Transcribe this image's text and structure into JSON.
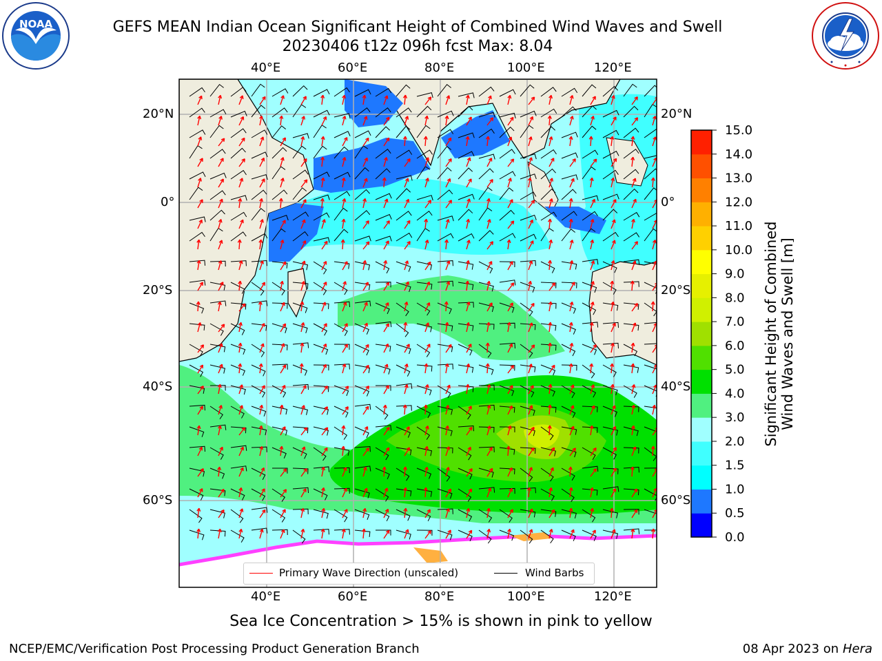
{
  "title": {
    "line1": "GEFS MEAN Indian Ocean Significant Height of Combined Wind Waves and Swell",
    "line2": "20230406 t12z 096h fcst   Max: 8.04"
  },
  "logos": {
    "left": {
      "name": "noaa-logo",
      "text": "NOAA",
      "ring_text": "NATIONAL OCEANIC AND ATMOSPHERIC ADMINISTRATION · U.S. DEPARTMENT OF COMMERCE"
    },
    "right": {
      "name": "nws-logo",
      "ring_text": "NATIONAL WEATHER SERVICE"
    }
  },
  "map": {
    "lon_labels": [
      "40°E",
      "60°E",
      "80°E",
      "100°E",
      "120°E"
    ],
    "lat_labels": [
      "20°N",
      "0°",
      "20°S",
      "40°S",
      "60°S"
    ],
    "land_color": "#efedde",
    "grid_color": "#b0b0b0"
  },
  "legend": {
    "wave_label": "Primary Wave Direction (unscaled)",
    "wave_color": "#ff0000",
    "barb_label": "Wind Barbs",
    "barb_color": "#000000"
  },
  "colorbar": {
    "title_line1": "Significant Height of Combined",
    "title_line2": "Wind Waves and Swell [m]",
    "ticks": [
      "0.0",
      "0.5",
      "1.0",
      "1.5",
      "2.0",
      "3.0",
      "4.0",
      "5.0",
      "6.0",
      "7.0",
      "8.0",
      "9.0",
      "10.0",
      "11.0",
      "12.0",
      "13.0",
      "14.0",
      "15.0"
    ],
    "colors": [
      "#0000ff",
      "#1e78ff",
      "#00ffff",
      "#40ffff",
      "#a0ffff",
      "#50f080",
      "#00e000",
      "#50e000",
      "#a0e000",
      "#d0f000",
      "#e6f000",
      "#ffff00",
      "#ffd000",
      "#ffb000",
      "#ff8000",
      "#ff5000",
      "#ff2000"
    ]
  },
  "caption": "Sea Ice Concentration > 15% is shown in pink to yellow",
  "footer": {
    "left": "NCEP/EMC/Verification Post Processing Product Generation Branch",
    "right_date": "08 Apr 2023 on ",
    "right_host": "Hera"
  }
}
